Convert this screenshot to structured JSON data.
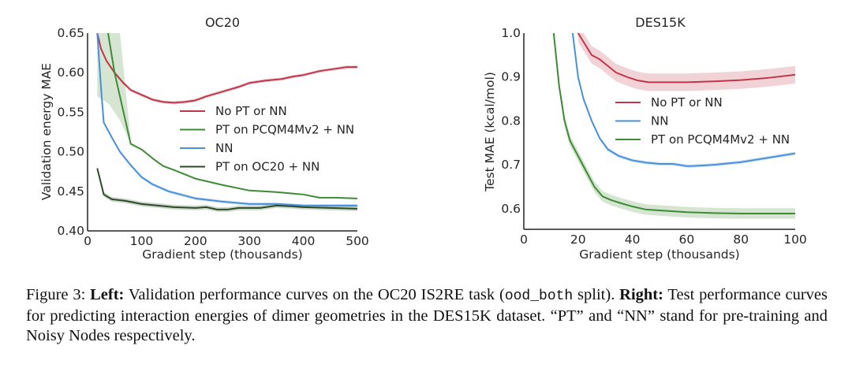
{
  "chart_data": [
    {
      "type": "line",
      "title": "OC20",
      "xlabel": "Gradient step (thousands)",
      "ylabel": "Validation energy MAE",
      "xlim": [
        0,
        500
      ],
      "ylim": [
        0.4,
        0.65
      ],
      "xticks": [
        "0",
        "100",
        "200",
        "300",
        "400",
        "500"
      ],
      "yticks": [
        "0.40",
        "0.45",
        "0.50",
        "0.55",
        "0.60",
        "0.65"
      ],
      "grid": false,
      "legend_position": "center-right",
      "series": [
        {
          "name": "No PT or NN",
          "color": "#c0364b",
          "x": [
            18,
            25,
            35,
            50,
            65,
            80,
            100,
            120,
            140,
            160,
            180,
            200,
            220,
            250,
            280,
            300,
            330,
            360,
            380,
            400,
            430,
            460,
            480,
            500
          ],
          "y": [
            0.66,
            0.63,
            0.615,
            0.6,
            0.588,
            0.578,
            0.572,
            0.566,
            0.563,
            0.562,
            0.563,
            0.565,
            0.57,
            0.576,
            0.582,
            0.587,
            0.59,
            0.592,
            0.595,
            0.597,
            0.602,
            0.605,
            0.607,
            0.607
          ],
          "band": 0.002
        },
        {
          "name": "PT on PCQM4Mv2 + NN",
          "color": "#3f8a34",
          "x": [
            38,
            50,
            65,
            80,
            100,
            120,
            140,
            160,
            200,
            250,
            300,
            350,
            400,
            430,
            460,
            500
          ],
          "y": [
            0.65,
            0.6,
            0.555,
            0.51,
            0.503,
            0.492,
            0.482,
            0.477,
            0.466,
            0.458,
            0.451,
            0.449,
            0.446,
            0.442,
            0.442,
            0.441
          ],
          "band_x": [
            18,
            40,
            60,
            80
          ],
          "band_upper": [
            0.65,
            0.65,
            0.65,
            0.515
          ],
          "band_lower": [
            0.57,
            0.56,
            0.54,
            0.51
          ]
        },
        {
          "name": "NN",
          "color": "#4a90d9",
          "x": [
            18,
            25,
            30,
            45,
            60,
            80,
            100,
            120,
            150,
            200,
            250,
            300,
            350,
            400,
            450,
            500
          ],
          "y": [
            0.65,
            0.58,
            0.537,
            0.518,
            0.5,
            0.483,
            0.468,
            0.459,
            0.45,
            0.441,
            0.437,
            0.434,
            0.434,
            0.432,
            0.432,
            0.432
          ],
          "band": 0.002
        },
        {
          "name": "PT on OC20 + NN",
          "color": "#2a4d26",
          "x": [
            18,
            30,
            45,
            70,
            100,
            130,
            160,
            200,
            220,
            240,
            260,
            280,
            300,
            320,
            350,
            380,
            400,
            450,
            500
          ],
          "y": [
            0.479,
            0.446,
            0.44,
            0.438,
            0.434,
            0.432,
            0.43,
            0.429,
            0.43,
            0.427,
            0.427,
            0.429,
            0.429,
            0.429,
            0.432,
            0.431,
            0.43,
            0.429,
            0.428
          ],
          "band": 0.003
        }
      ]
    },
    {
      "type": "line",
      "title": "DES15K",
      "xlabel": "Gradient step (thousands)",
      "ylabel": "Test MAE (kcal/mol)",
      "xlim": [
        0,
        100
      ],
      "ylim": [
        0.553,
        1.0
      ],
      "xticks": [
        "0",
        "20",
        "40",
        "60",
        "80",
        "100"
      ],
      "yticks": [
        "0.6",
        "0.7",
        "0.8",
        "0.9",
        "1.0"
      ],
      "ytick_values": [
        0.6,
        0.7,
        0.8,
        0.9,
        1.0
      ],
      "grid": false,
      "legend_position": "center-right",
      "series": [
        {
          "name": "No PT or NN",
          "color": "#c0364b",
          "x": [
            20,
            22,
            25,
            28,
            31,
            34,
            38,
            42,
            46,
            50,
            60,
            70,
            80,
            90,
            100
          ],
          "y": [
            1.0,
            0.98,
            0.95,
            0.94,
            0.925,
            0.91,
            0.9,
            0.892,
            0.888,
            0.888,
            0.888,
            0.89,
            0.893,
            0.898,
            0.905
          ],
          "band": 0.02
        },
        {
          "name": "NN",
          "color": "#4a90d9",
          "x": [
            18,
            20,
            22,
            25,
            28,
            31,
            35,
            40,
            45,
            50,
            55,
            60,
            62,
            70,
            80,
            90,
            100
          ],
          "y": [
            1.0,
            0.9,
            0.85,
            0.8,
            0.76,
            0.735,
            0.72,
            0.71,
            0.705,
            0.702,
            0.702,
            0.697,
            0.697,
            0.7,
            0.706,
            0.716,
            0.726
          ],
          "band": 0.004
        },
        {
          "name": "PT on PCQM4Mv2 + NN",
          "color": "#3f8a34",
          "x": [
            11,
            13,
            15,
            17,
            20,
            23,
            26,
            29,
            32,
            36,
            40,
            45,
            50,
            60,
            70,
            80,
            100
          ],
          "y": [
            1.0,
            0.88,
            0.8,
            0.755,
            0.72,
            0.685,
            0.65,
            0.628,
            0.62,
            0.612,
            0.605,
            0.598,
            0.596,
            0.592,
            0.59,
            0.589,
            0.589
          ],
          "band": 0.012
        }
      ]
    }
  ],
  "caption": {
    "prefix": "Figure 3: ",
    "left_label": "Left:",
    "left_text_1": " Validation performance curves on the OC20 IS2RE task (",
    "code": "ood_both",
    "left_text_2": " split). ",
    "right_label": "Right:",
    "right_text": " Test performance curves for predicting interaction energies of dimer geometries in the DES15K dataset. “PT” and “NN” stand for pre-training and Noisy Nodes respectively."
  }
}
